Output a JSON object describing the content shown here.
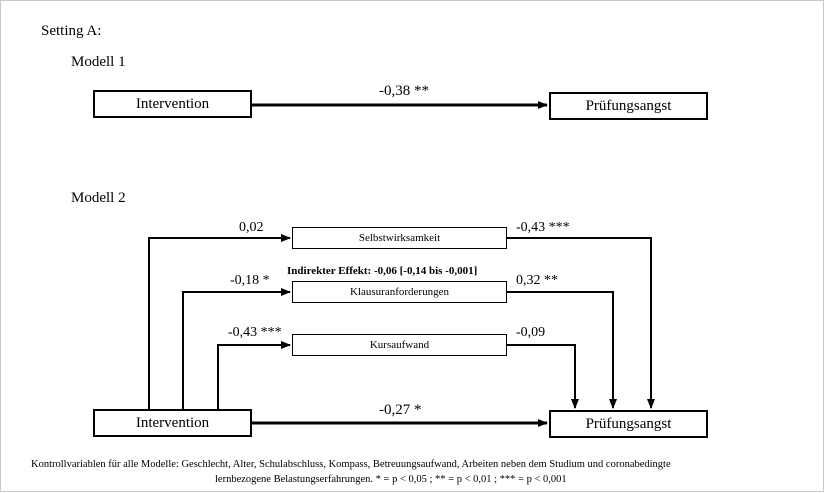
{
  "setting_title": "Setting A:",
  "model1": {
    "title": "Modell 1",
    "source": "Intervention",
    "target": "Prüfungsangst",
    "effect": "-0,38 **"
  },
  "model2": {
    "title": "Modell 2",
    "source": "Intervention",
    "target": "Prüfungsangst",
    "direct_effect": "-0,27 *",
    "indirect_effect": "Indirekter Effekt: -0,06 [-0,14 bis -0,001]",
    "mediators": [
      {
        "label": "Selbstwirksamkeit",
        "path_a": "0,02",
        "path_b": "-0,43 ***"
      },
      {
        "label": "Klausuranforderungen",
        "path_a": "-0,18 *",
        "path_b": "0,32 **"
      },
      {
        "label": "Kursaufwand",
        "path_a": "-0,43 ***",
        "path_b": "-0,09"
      }
    ]
  },
  "footnote": {
    "line1": "Kontrollvariablen für alle Modelle: Geschlecht, Alter, Schulabschluss, Kompass, Betreuungsaufwand, Arbeiten neben dem Studium und coronabedingte",
    "line2": "lernbezogene Belastungserfahrungen.   * = p < 0,05 ; ** = p < 0,01 ; *** = p < 0,001"
  }
}
